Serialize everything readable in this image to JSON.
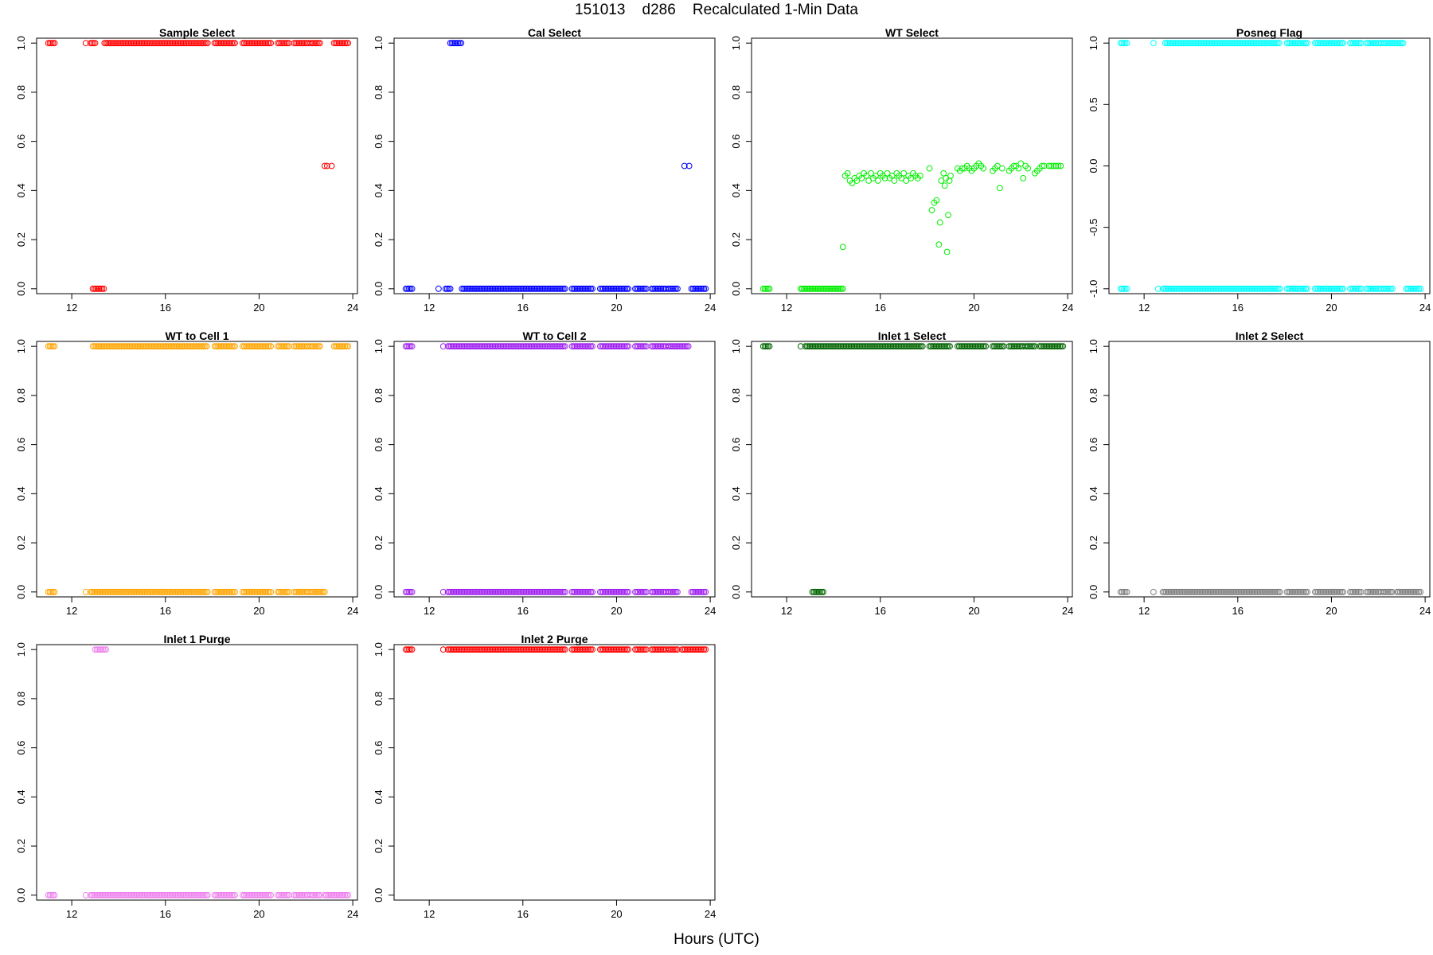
{
  "page": {
    "title": "151013    d286    Recalculated 1-Min Data",
    "xlabel": "Hours (UTC)"
  },
  "chart_data": [
    {
      "type": "scatter",
      "title": "Sample Select",
      "color": "#ff0000",
      "xlim": [
        10.5,
        24.2
      ],
      "ylim": [
        -0.02,
        1.02
      ],
      "xticks": [
        12,
        16,
        20,
        24
      ],
      "yticks": [
        0.0,
        0.2,
        0.4,
        0.6,
        0.8,
        1.0
      ],
      "ytick_labels": [
        "0.0",
        "0.2",
        "0.4",
        "0.6",
        "0.8",
        "1.0"
      ],
      "segments": [
        {
          "from": 11.0,
          "to": 11.3,
          "y": 1.0
        },
        {
          "from": 12.8,
          "to": 13.0,
          "y": 1.0
        },
        {
          "from": 13.4,
          "to": 17.8,
          "y": 1.0
        },
        {
          "from": 18.1,
          "to": 19.0,
          "y": 1.0
        },
        {
          "from": 19.3,
          "to": 20.5,
          "y": 1.0
        },
        {
          "from": 20.8,
          "to": 21.3,
          "y": 1.0
        },
        {
          "from": 21.5,
          "to": 22.1,
          "y": 1.0
        },
        {
          "from": 22.2,
          "to": 22.6,
          "y": 1.0
        },
        {
          "from": 23.2,
          "to": 23.8,
          "y": 1.0
        },
        {
          "from": 12.9,
          "to": 13.4,
          "y": 0.0
        }
      ],
      "points": [
        [
          12.6,
          1.0
        ],
        [
          22.8,
          0.5
        ],
        [
          22.9,
          0.5
        ],
        [
          23.1,
          0.5
        ]
      ]
    },
    {
      "type": "scatter",
      "title": "Cal Select",
      "color": "#0000ff",
      "xlim": [
        10.5,
        24.2
      ],
      "ylim": [
        -0.02,
        1.02
      ],
      "xticks": [
        12,
        16,
        20,
        24
      ],
      "yticks": [
        0.0,
        0.2,
        0.4,
        0.6,
        0.8,
        1.0
      ],
      "ytick_labels": [
        "0.0",
        "0.2",
        "0.4",
        "0.6",
        "0.8",
        "1.0"
      ],
      "segments": [
        {
          "from": 12.9,
          "to": 13.4,
          "y": 1.0
        },
        {
          "from": 11.0,
          "to": 11.3,
          "y": 0.0
        },
        {
          "from": 12.7,
          "to": 12.9,
          "y": 0.0
        },
        {
          "from": 13.4,
          "to": 17.8,
          "y": 0.0
        },
        {
          "from": 18.1,
          "to": 19.0,
          "y": 0.0
        },
        {
          "from": 19.3,
          "to": 20.5,
          "y": 0.0
        },
        {
          "from": 20.8,
          "to": 21.3,
          "y": 0.0
        },
        {
          "from": 21.5,
          "to": 22.1,
          "y": 0.0
        },
        {
          "from": 22.2,
          "to": 22.6,
          "y": 0.0
        },
        {
          "from": 23.2,
          "to": 23.8,
          "y": 0.0
        }
      ],
      "points": [
        [
          12.4,
          0.0
        ],
        [
          22.9,
          0.5
        ],
        [
          23.1,
          0.5
        ]
      ]
    },
    {
      "type": "scatter",
      "title": "WT Select",
      "color": "#00ee00",
      "xlim": [
        10.5,
        24.2
      ],
      "ylim": [
        -0.02,
        1.02
      ],
      "xticks": [
        12,
        16,
        20,
        24
      ],
      "yticks": [
        0.0,
        0.2,
        0.4,
        0.6,
        0.8,
        1.0
      ],
      "ytick_labels": [
        "0.0",
        "0.2",
        "0.4",
        "0.6",
        "0.8",
        "1.0"
      ],
      "segments": [
        {
          "from": 11.0,
          "to": 11.3,
          "y": 0.0
        },
        {
          "from": 12.6,
          "to": 14.4,
          "y": 0.0
        }
      ],
      "points": [
        [
          14.4,
          0.17
        ],
        [
          14.5,
          0.46
        ],
        [
          14.6,
          0.47
        ],
        [
          14.7,
          0.44
        ],
        [
          14.8,
          0.43
        ],
        [
          14.9,
          0.45
        ],
        [
          15.0,
          0.44
        ],
        [
          15.1,
          0.46
        ],
        [
          15.2,
          0.45
        ],
        [
          15.3,
          0.47
        ],
        [
          15.4,
          0.46
        ],
        [
          15.5,
          0.44
        ],
        [
          15.6,
          0.47
        ],
        [
          15.7,
          0.45
        ],
        [
          15.8,
          0.46
        ],
        [
          15.9,
          0.44
        ],
        [
          16.0,
          0.47
        ],
        [
          16.1,
          0.46
        ],
        [
          16.2,
          0.45
        ],
        [
          16.3,
          0.47
        ],
        [
          16.4,
          0.45
        ],
        [
          16.5,
          0.46
        ],
        [
          16.6,
          0.44
        ],
        [
          16.7,
          0.47
        ],
        [
          16.8,
          0.46
        ],
        [
          16.9,
          0.45
        ],
        [
          17.0,
          0.47
        ],
        [
          17.1,
          0.44
        ],
        [
          17.2,
          0.46
        ],
        [
          17.3,
          0.45
        ],
        [
          17.4,
          0.47
        ],
        [
          17.5,
          0.46
        ],
        [
          17.6,
          0.45
        ],
        [
          17.7,
          0.46
        ],
        [
          18.1,
          0.49
        ],
        [
          18.2,
          0.32
        ],
        [
          18.3,
          0.35
        ],
        [
          18.4,
          0.36
        ],
        [
          18.5,
          0.18
        ],
        [
          18.55,
          0.27
        ],
        [
          18.6,
          0.44
        ],
        [
          18.7,
          0.47
        ],
        [
          18.75,
          0.42
        ],
        [
          18.8,
          0.45
        ],
        [
          18.85,
          0.15
        ],
        [
          18.9,
          0.3
        ],
        [
          18.95,
          0.44
        ],
        [
          19.0,
          0.46
        ],
        [
          19.3,
          0.49
        ],
        [
          19.4,
          0.48
        ],
        [
          19.5,
          0.49
        ],
        [
          19.6,
          0.49
        ],
        [
          19.7,
          0.5
        ],
        [
          19.8,
          0.49
        ],
        [
          19.9,
          0.48
        ],
        [
          20.0,
          0.49
        ],
        [
          20.1,
          0.5
        ],
        [
          20.2,
          0.51
        ],
        [
          20.3,
          0.5
        ],
        [
          20.4,
          0.49
        ],
        [
          20.8,
          0.48
        ],
        [
          20.9,
          0.49
        ],
        [
          21.0,
          0.5
        ],
        [
          21.1,
          0.41
        ],
        [
          21.2,
          0.49
        ],
        [
          21.5,
          0.48
        ],
        [
          21.6,
          0.49
        ],
        [
          21.7,
          0.5
        ],
        [
          21.8,
          0.5
        ],
        [
          21.9,
          0.49
        ],
        [
          22.0,
          0.51
        ],
        [
          22.1,
          0.45
        ],
        [
          22.2,
          0.5
        ],
        [
          22.3,
          0.49
        ],
        [
          22.6,
          0.47
        ],
        [
          22.7,
          0.48
        ],
        [
          22.8,
          0.49
        ],
        [
          22.9,
          0.5
        ],
        [
          23.0,
          0.5
        ],
        [
          23.2,
          0.5
        ],
        [
          23.3,
          0.5
        ],
        [
          23.4,
          0.5
        ],
        [
          23.5,
          0.5
        ],
        [
          23.6,
          0.5
        ],
        [
          23.7,
          0.5
        ]
      ]
    },
    {
      "type": "scatter",
      "title": "Posneg Flag",
      "color": "#00ffff",
      "xlim": [
        10.5,
        24.2
      ],
      "ylim": [
        -1.04,
        1.04
      ],
      "xticks": [
        12,
        16,
        20,
        24
      ],
      "yticks": [
        -1.0,
        -0.5,
        0.0,
        0.5,
        1.0
      ],
      "ytick_labels": [
        "-1.0",
        "-0.5",
        "0.0",
        "0.5",
        "1.0"
      ],
      "segments": [
        {
          "from": 11.0,
          "to": 11.3,
          "y": 1.0
        },
        {
          "from": 12.9,
          "to": 17.8,
          "y": 1.0
        },
        {
          "from": 18.1,
          "to": 19.0,
          "y": 1.0
        },
        {
          "from": 19.3,
          "to": 20.5,
          "y": 1.0
        },
        {
          "from": 20.8,
          "to": 21.3,
          "y": 1.0
        },
        {
          "from": 21.5,
          "to": 22.1,
          "y": 1.0
        },
        {
          "from": 22.2,
          "to": 23.1,
          "y": 1.0
        },
        {
          "from": 11.0,
          "to": 11.3,
          "y": -1.0
        },
        {
          "from": 12.8,
          "to": 17.8,
          "y": -1.0
        },
        {
          "from": 18.1,
          "to": 19.0,
          "y": -1.0
        },
        {
          "from": 19.3,
          "to": 20.5,
          "y": -1.0
        },
        {
          "from": 20.8,
          "to": 21.3,
          "y": -1.0
        },
        {
          "from": 21.5,
          "to": 22.1,
          "y": -1.0
        },
        {
          "from": 22.2,
          "to": 22.6,
          "y": -1.0
        },
        {
          "from": 23.2,
          "to": 23.8,
          "y": -1.0
        }
      ],
      "points": [
        [
          12.4,
          1.0
        ],
        [
          12.6,
          -1.0
        ]
      ]
    },
    {
      "type": "scatter",
      "title": "WT to Cell 1",
      "color": "#ffa500",
      "xlim": [
        10.5,
        24.2
      ],
      "ylim": [
        -0.02,
        1.02
      ],
      "xticks": [
        12,
        16,
        20,
        24
      ],
      "yticks": [
        0.0,
        0.2,
        0.4,
        0.6,
        0.8,
        1.0
      ],
      "ytick_labels": [
        "0.0",
        "0.2",
        "0.4",
        "0.6",
        "0.8",
        "1.0"
      ],
      "segments": [
        {
          "from": 11.0,
          "to": 11.3,
          "y": 1.0
        },
        {
          "from": 12.9,
          "to": 17.8,
          "y": 1.0
        },
        {
          "from": 18.1,
          "to": 19.0,
          "y": 1.0
        },
        {
          "from": 19.3,
          "to": 20.5,
          "y": 1.0
        },
        {
          "from": 20.8,
          "to": 21.3,
          "y": 1.0
        },
        {
          "from": 21.5,
          "to": 22.1,
          "y": 1.0
        },
        {
          "from": 22.2,
          "to": 22.6,
          "y": 1.0
        },
        {
          "from": 23.2,
          "to": 23.8,
          "y": 1.0
        },
        {
          "from": 11.0,
          "to": 11.3,
          "y": 0.0
        },
        {
          "from": 12.8,
          "to": 17.8,
          "y": 0.0
        },
        {
          "from": 18.1,
          "to": 19.0,
          "y": 0.0
        },
        {
          "from": 19.3,
          "to": 20.5,
          "y": 0.0
        },
        {
          "from": 20.8,
          "to": 21.3,
          "y": 0.0
        },
        {
          "from": 21.5,
          "to": 22.1,
          "y": 0.0
        },
        {
          "from": 22.2,
          "to": 22.8,
          "y": 0.0
        }
      ],
      "points": [
        [
          12.6,
          0.0
        ]
      ]
    },
    {
      "type": "scatter",
      "title": "WT to Cell 2",
      "color": "#a020f0",
      "xlim": [
        10.5,
        24.2
      ],
      "ylim": [
        -0.02,
        1.02
      ],
      "xticks": [
        12,
        16,
        20,
        24
      ],
      "yticks": [
        0.0,
        0.2,
        0.4,
        0.6,
        0.8,
        1.0
      ],
      "ytick_labels": [
        "0.0",
        "0.2",
        "0.4",
        "0.6",
        "0.8",
        "1.0"
      ],
      "segments": [
        {
          "from": 11.0,
          "to": 11.3,
          "y": 1.0
        },
        {
          "from": 12.8,
          "to": 17.8,
          "y": 1.0
        },
        {
          "from": 18.1,
          "to": 19.0,
          "y": 1.0
        },
        {
          "from": 19.3,
          "to": 20.5,
          "y": 1.0
        },
        {
          "from": 20.8,
          "to": 21.3,
          "y": 1.0
        },
        {
          "from": 21.5,
          "to": 22.1,
          "y": 1.0
        },
        {
          "from": 22.2,
          "to": 23.1,
          "y": 1.0
        },
        {
          "from": 11.0,
          "to": 11.3,
          "y": 0.0
        },
        {
          "from": 12.8,
          "to": 17.8,
          "y": 0.0
        },
        {
          "from": 18.1,
          "to": 19.0,
          "y": 0.0
        },
        {
          "from": 19.3,
          "to": 20.5,
          "y": 0.0
        },
        {
          "from": 20.8,
          "to": 21.3,
          "y": 0.0
        },
        {
          "from": 21.5,
          "to": 22.1,
          "y": 0.0
        },
        {
          "from": 22.2,
          "to": 22.6,
          "y": 0.0
        },
        {
          "from": 23.2,
          "to": 23.8,
          "y": 0.0
        }
      ],
      "points": [
        [
          12.6,
          1.0
        ],
        [
          12.6,
          0.0
        ]
      ]
    },
    {
      "type": "scatter",
      "title": "Inlet 1 Select",
      "color": "#006400",
      "xlim": [
        10.5,
        24.2
      ],
      "ylim": [
        -0.02,
        1.02
      ],
      "xticks": [
        12,
        16,
        20,
        24
      ],
      "yticks": [
        0.0,
        0.2,
        0.4,
        0.6,
        0.8,
        1.0
      ],
      "ytick_labels": [
        "0.0",
        "0.2",
        "0.4",
        "0.6",
        "0.8",
        "1.0"
      ],
      "segments": [
        {
          "from": 11.0,
          "to": 11.3,
          "y": 1.0
        },
        {
          "from": 12.8,
          "to": 17.8,
          "y": 1.0
        },
        {
          "from": 18.1,
          "to": 19.0,
          "y": 1.0
        },
        {
          "from": 19.3,
          "to": 20.5,
          "y": 1.0
        },
        {
          "from": 20.8,
          "to": 21.3,
          "y": 1.0
        },
        {
          "from": 21.5,
          "to": 22.1,
          "y": 1.0
        },
        {
          "from": 22.2,
          "to": 22.6,
          "y": 1.0
        },
        {
          "from": 22.8,
          "to": 23.8,
          "y": 1.0
        },
        {
          "from": 13.1,
          "to": 13.6,
          "y": 0.0
        }
      ],
      "points": [
        [
          12.6,
          1.0
        ]
      ]
    },
    {
      "type": "scatter",
      "title": "Inlet 2 Select",
      "color": "#808080",
      "xlim": [
        10.5,
        24.2
      ],
      "ylim": [
        -0.02,
        1.02
      ],
      "xticks": [
        12,
        16,
        20,
        24
      ],
      "yticks": [
        0.0,
        0.2,
        0.4,
        0.6,
        0.8,
        1.0
      ],
      "ytick_labels": [
        "0.0",
        "0.2",
        "0.4",
        "0.6",
        "0.8",
        "1.0"
      ],
      "segments": [
        {
          "from": 11.0,
          "to": 11.3,
          "y": 0.0
        },
        {
          "from": 12.8,
          "to": 17.8,
          "y": 0.0
        },
        {
          "from": 18.1,
          "to": 19.0,
          "y": 0.0
        },
        {
          "from": 19.3,
          "to": 20.5,
          "y": 0.0
        },
        {
          "from": 20.8,
          "to": 21.3,
          "y": 0.0
        },
        {
          "from": 21.5,
          "to": 22.1,
          "y": 0.0
        },
        {
          "from": 22.2,
          "to": 22.6,
          "y": 0.0
        },
        {
          "from": 22.8,
          "to": 23.8,
          "y": 0.0
        }
      ],
      "points": [
        [
          12.4,
          0.0
        ]
      ]
    },
    {
      "type": "scatter",
      "title": "Inlet 1 Purge",
      "color": "#ee82ee",
      "xlim": [
        10.5,
        24.2
      ],
      "ylim": [
        -0.02,
        1.02
      ],
      "xticks": [
        12,
        16,
        20,
        24
      ],
      "yticks": [
        0.0,
        0.2,
        0.4,
        0.6,
        0.8,
        1.0
      ],
      "ytick_labels": [
        "0.0",
        "0.2",
        "0.4",
        "0.6",
        "0.8",
        "1.0"
      ],
      "segments": [
        {
          "from": 13.0,
          "to": 13.5,
          "y": 1.0
        },
        {
          "from": 11.0,
          "to": 11.3,
          "y": 0.0
        },
        {
          "from": 12.8,
          "to": 17.8,
          "y": 0.0
        },
        {
          "from": 18.1,
          "to": 19.0,
          "y": 0.0
        },
        {
          "from": 19.3,
          "to": 20.5,
          "y": 0.0
        },
        {
          "from": 20.8,
          "to": 21.3,
          "y": 0.0
        },
        {
          "from": 21.5,
          "to": 22.1,
          "y": 0.0
        },
        {
          "from": 22.2,
          "to": 22.6,
          "y": 0.0
        },
        {
          "from": 22.8,
          "to": 23.8,
          "y": 0.0
        }
      ],
      "points": [
        [
          12.6,
          0.0
        ]
      ]
    },
    {
      "type": "scatter",
      "title": "Inlet 2 Purge",
      "color": "#ff0000",
      "xlim": [
        10.5,
        24.2
      ],
      "ylim": [
        -0.02,
        1.02
      ],
      "xticks": [
        12,
        16,
        20,
        24
      ],
      "yticks": [
        0.0,
        0.2,
        0.4,
        0.6,
        0.8,
        1.0
      ],
      "ytick_labels": [
        "0.0",
        "0.2",
        "0.4",
        "0.6",
        "0.8",
        "1.0"
      ],
      "segments": [
        {
          "from": 11.0,
          "to": 11.3,
          "y": 1.0
        },
        {
          "from": 12.8,
          "to": 17.8,
          "y": 1.0
        },
        {
          "from": 18.1,
          "to": 19.0,
          "y": 1.0
        },
        {
          "from": 19.3,
          "to": 20.5,
          "y": 1.0
        },
        {
          "from": 20.8,
          "to": 21.3,
          "y": 1.0
        },
        {
          "from": 21.5,
          "to": 22.1,
          "y": 1.0
        },
        {
          "from": 22.2,
          "to": 22.6,
          "y": 1.0
        },
        {
          "from": 22.8,
          "to": 23.8,
          "y": 1.0
        }
      ],
      "points": [
        [
          12.6,
          1.0
        ]
      ]
    }
  ]
}
